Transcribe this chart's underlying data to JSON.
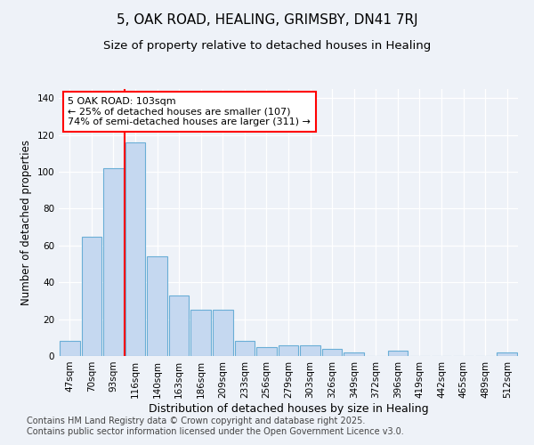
{
  "title": "5, OAK ROAD, HEALING, GRIMSBY, DN41 7RJ",
  "subtitle": "Size of property relative to detached houses in Healing",
  "xlabel": "Distribution of detached houses by size in Healing",
  "ylabel": "Number of detached properties",
  "bar_values": [
    8,
    65,
    102,
    116,
    54,
    33,
    25,
    25,
    8,
    5,
    6,
    6,
    4,
    2,
    0,
    3,
    0,
    0,
    0,
    0,
    2
  ],
  "bin_labels": [
    "47sqm",
    "70sqm",
    "93sqm",
    "116sqm",
    "140sqm",
    "163sqm",
    "186sqm",
    "209sqm",
    "233sqm",
    "256sqm",
    "279sqm",
    "303sqm",
    "326sqm",
    "349sqm",
    "372sqm",
    "396sqm",
    "419sqm",
    "442sqm",
    "465sqm",
    "489sqm",
    "512sqm"
  ],
  "bar_color": "#c5d8f0",
  "bar_edge_color": "#6aaed6",
  "background_color": "#eef2f8",
  "grid_color": "#ffffff",
  "ylim": [
    0,
    145
  ],
  "yticks": [
    0,
    20,
    40,
    60,
    80,
    100,
    120,
    140
  ],
  "annotation_text": "5 OAK ROAD: 103sqm\n← 25% of detached houses are smaller (107)\n74% of semi-detached houses are larger (311) →",
  "footer_text": "Contains HM Land Registry data © Crown copyright and database right 2025.\nContains public sector information licensed under the Open Government Licence v3.0.",
  "title_fontsize": 11,
  "subtitle_fontsize": 9.5,
  "xlabel_fontsize": 9,
  "ylabel_fontsize": 8.5,
  "tick_fontsize": 7.5,
  "annotation_fontsize": 8,
  "footer_fontsize": 7
}
